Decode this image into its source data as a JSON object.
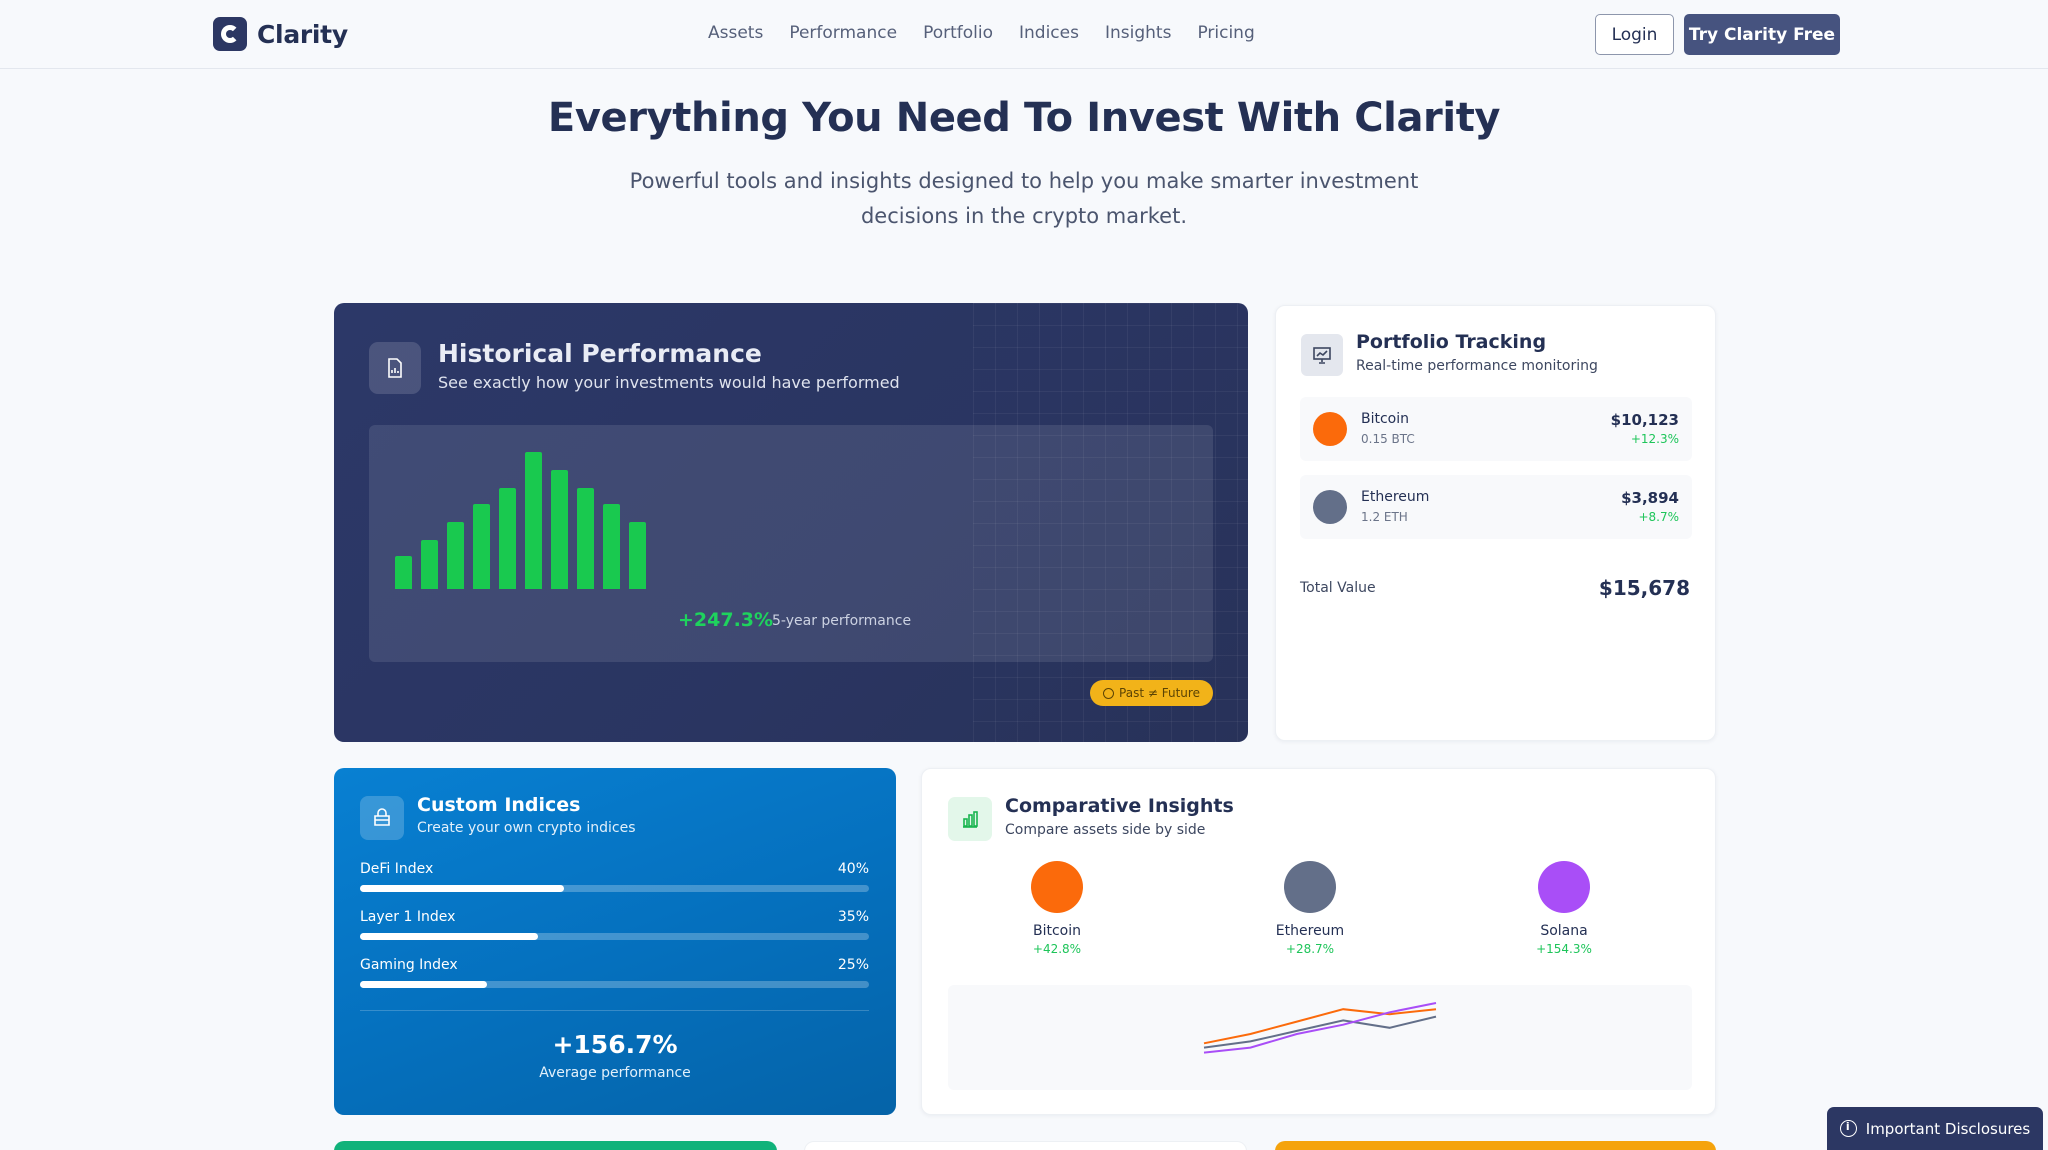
{
  "nav": {
    "brand": "Clarity",
    "links": [
      "Assets",
      "Performance",
      "Portfolio",
      "Indices",
      "Insights",
      "Pricing"
    ],
    "login": "Login",
    "cta": "Try Clarity Free"
  },
  "hero": {
    "title": "Everything You Need To Invest With Clarity",
    "subtitle": "Powerful tools and insights designed to help you make smarter investment decisions in the crypto market."
  },
  "historical": {
    "title": "Historical Performance",
    "subtitle": "See exactly how your investments would have performed",
    "bar_levels": [
      0.24,
      0.36,
      0.49,
      0.62,
      0.74,
      1.0,
      0.87,
      0.74,
      0.62,
      0.49
    ],
    "performance": "+247.3%",
    "performance_label": "5-year performance",
    "badge": "Past ≠ Future",
    "colors": {
      "bar": "#19c94f",
      "badge": "#f2b319"
    }
  },
  "portfolio": {
    "title": "Portfolio Tracking",
    "subtitle": "Real-time performance monitoring",
    "assets": [
      {
        "name": "Bitcoin",
        "amount": "0.15 BTC",
        "value": "$10,123",
        "change": "+12.3%",
        "color": "#fb6a0b"
      },
      {
        "name": "Ethereum",
        "amount": "1.2 ETH",
        "value": "$3,894",
        "change": "+8.7%",
        "color": "#636f89"
      }
    ],
    "total_label": "Total Value",
    "total_value": "$15,678"
  },
  "indices": {
    "title": "Custom Indices",
    "subtitle": "Create your own crypto indices",
    "items": [
      {
        "name": "DeFi Index",
        "pct": "40%",
        "fill": 0.4
      },
      {
        "name": "Layer 1 Index",
        "pct": "35%",
        "fill": 0.35
      },
      {
        "name": "Gaming Index",
        "pct": "25%",
        "fill": 0.25
      }
    ],
    "average": "+156.7%",
    "average_label": "Average performance"
  },
  "comparative": {
    "title": "Comparative Insights",
    "subtitle": "Compare assets side by side",
    "assets": [
      {
        "name": "Bitcoin",
        "change": "+42.8%",
        "color": "#fb6a0b"
      },
      {
        "name": "Ethereum",
        "change": "+28.7%",
        "color": "#636f89"
      },
      {
        "name": "Solana",
        "change": "+154.3%",
        "color": "#a94ef7"
      }
    ],
    "lines": [
      {
        "color": "#fb6a0b",
        "levels": [
          0.35,
          0.5,
          0.7,
          0.9,
          0.82,
          0.9
        ]
      },
      {
        "color": "#636f89",
        "levels": [
          0.28,
          0.38,
          0.55,
          0.72,
          0.6,
          0.78
        ]
      },
      {
        "color": "#a94ef7",
        "levels": [
          0.2,
          0.28,
          0.5,
          0.65,
          0.85,
          1.0
        ]
      }
    ]
  },
  "footer": {
    "disclosures": "Important Disclosures",
    "strip_colors": [
      "#10b27a",
      "#ffffff",
      "#f5a30c"
    ]
  }
}
